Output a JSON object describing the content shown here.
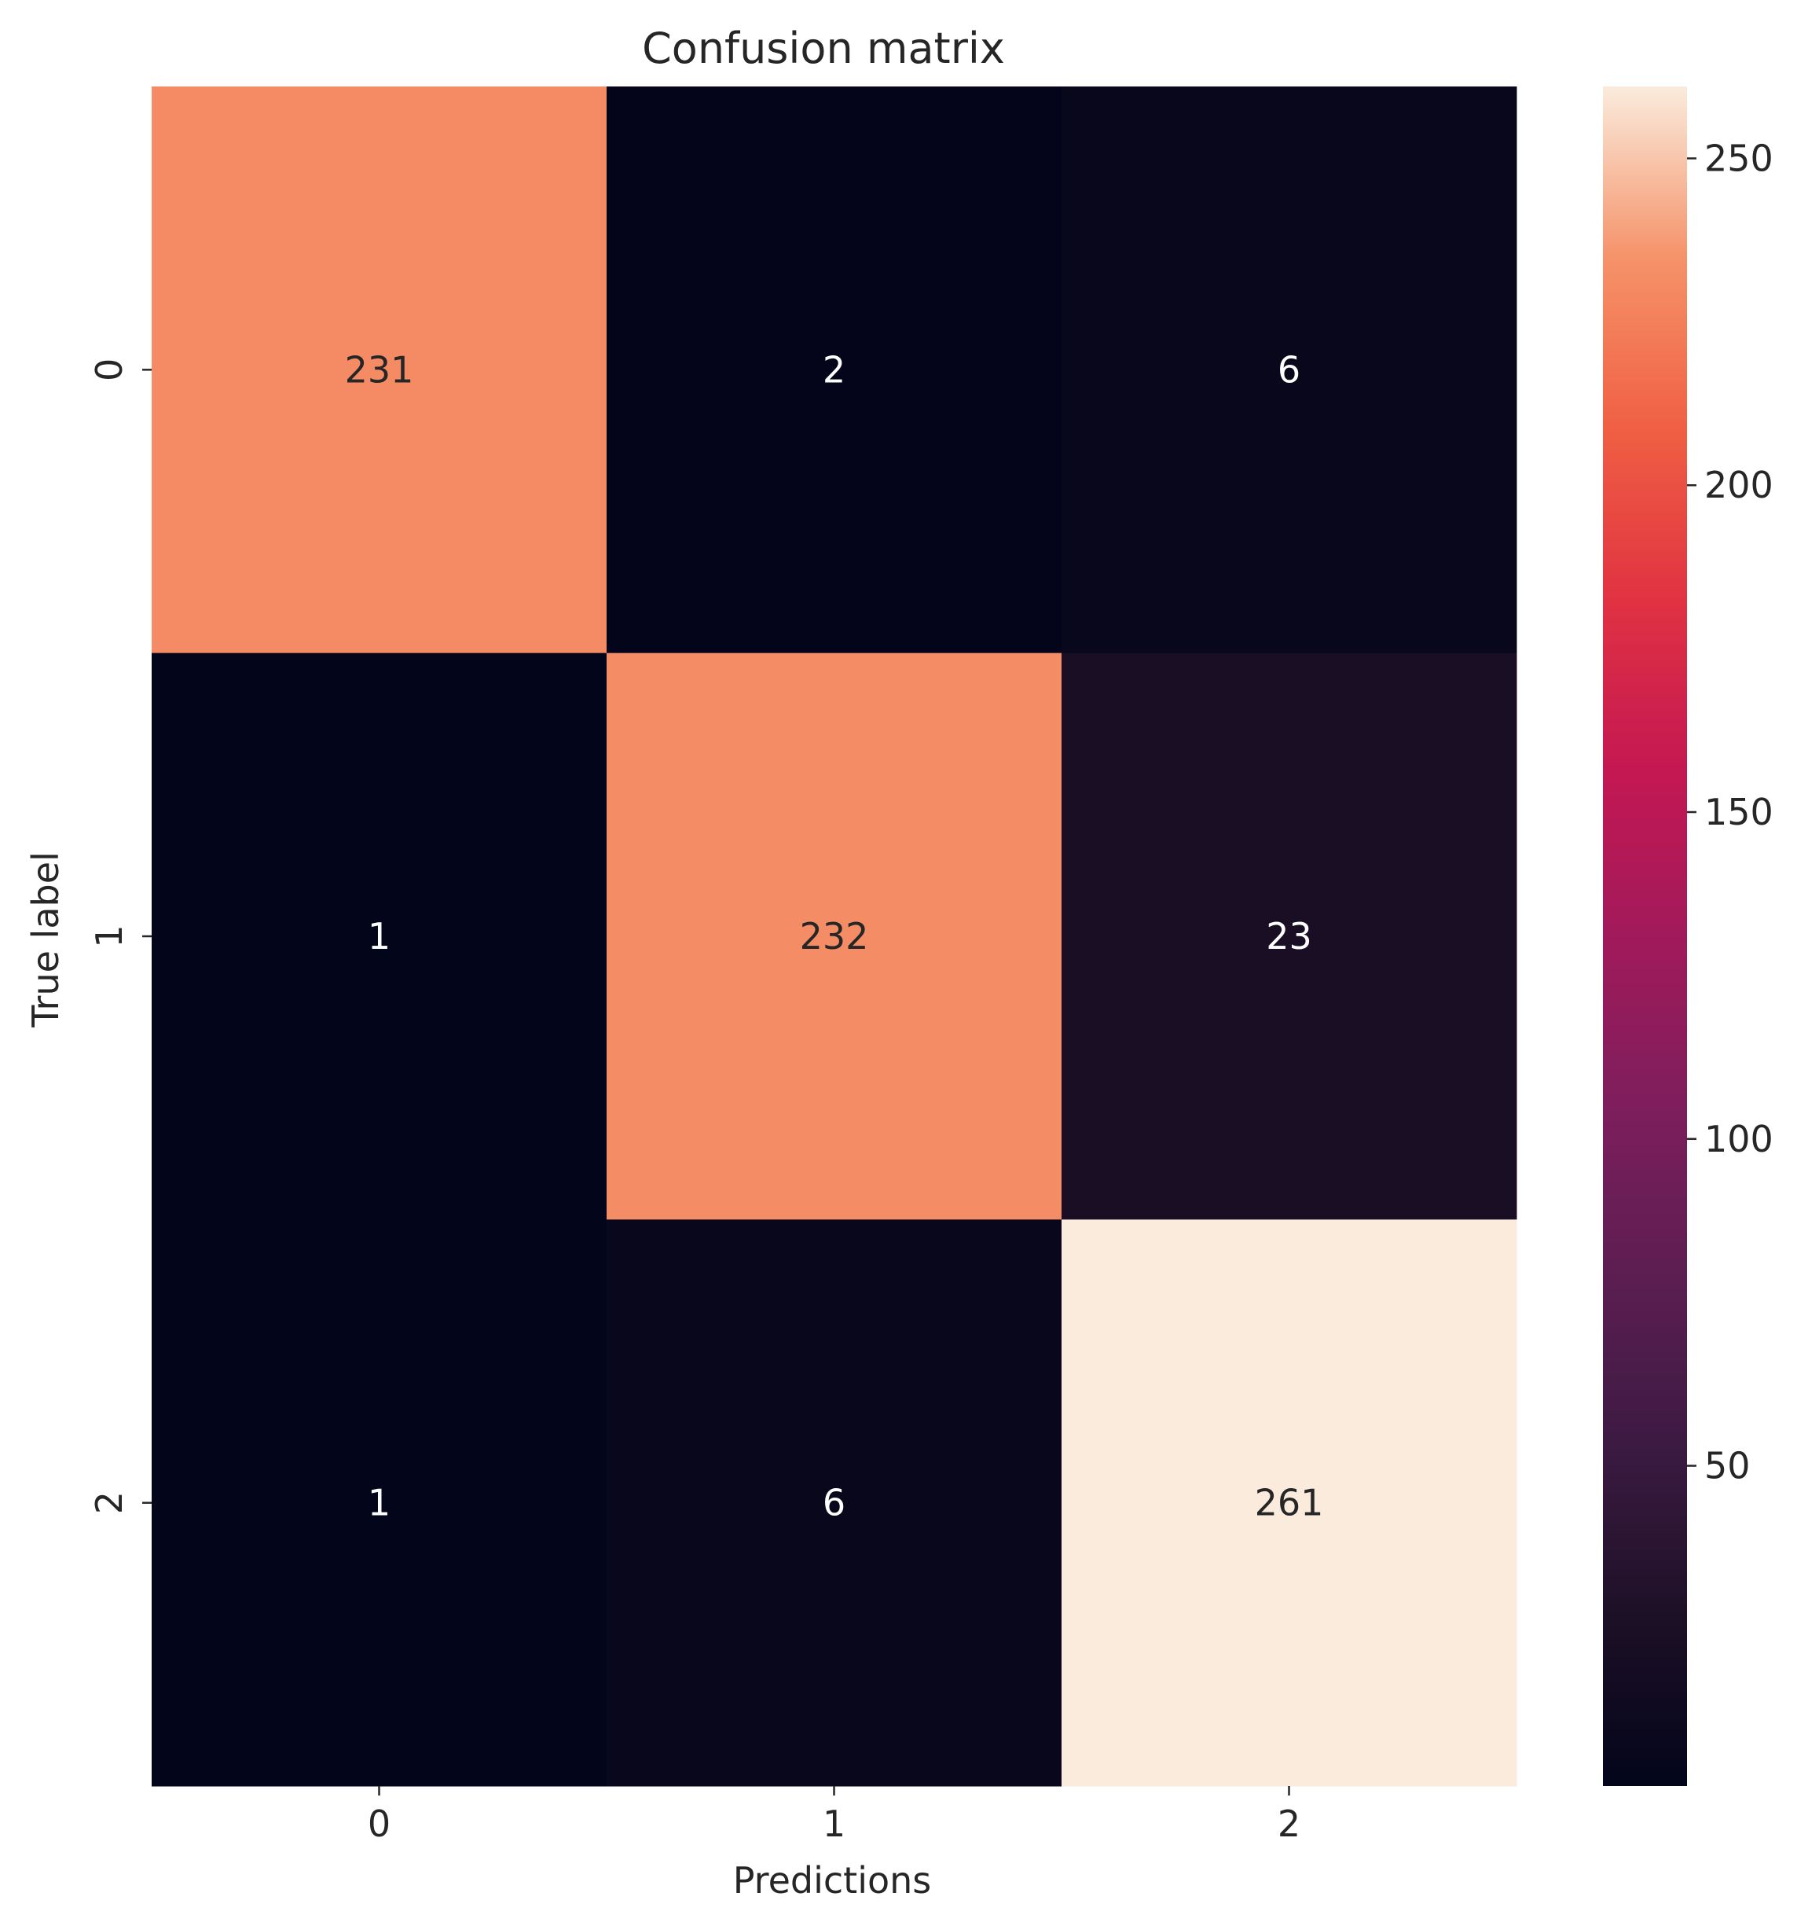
{
  "chart_data": {
    "type": "heatmap",
    "title": "Confusion matrix",
    "xlabel": "Predictions",
    "ylabel": "True label",
    "x_categories": [
      "0",
      "1",
      "2"
    ],
    "y_categories": [
      "0",
      "1",
      "2"
    ],
    "values": [
      [
        231,
        2,
        6
      ],
      [
        1,
        232,
        23
      ],
      [
        1,
        6,
        261
      ]
    ],
    "colormap": "rocket",
    "colorbar": {
      "range": [
        1,
        261
      ],
      "ticks": [
        50,
        100,
        150,
        200,
        250
      ],
      "tick_labels": [
        "50",
        "100",
        "150",
        "200",
        "250"
      ]
    },
    "cell_text_colors": {
      "dark": "#262626",
      "light": "#ffffff"
    }
  }
}
